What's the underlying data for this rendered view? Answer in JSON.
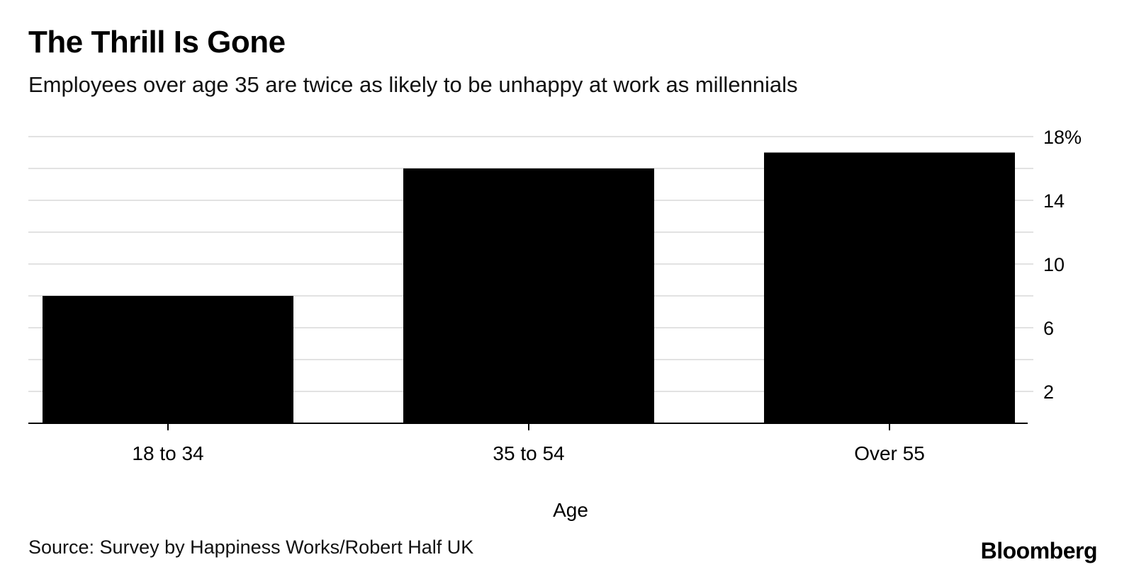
{
  "title": "The Thrill Is Gone",
  "subtitle": "Employees over age 35 are twice as likely to be unhappy at work as millennials",
  "source": "Source: Survey by Happiness Works/Robert Half UK",
  "logo": "Bloomberg",
  "colors": {
    "bar": "#000000",
    "grid": "#e2e2e2",
    "axis": "#000000",
    "background": "#ffffff"
  },
  "chart_data": {
    "type": "bar",
    "title": "The Thrill Is Gone",
    "subtitle": "Employees over age 35 are twice as likely to be unhappy at work as millennials",
    "xlabel": "Age",
    "ylabel": "",
    "categories": [
      "18 to 34",
      "35 to 54",
      "Over 55"
    ],
    "values": [
      8,
      16,
      17
    ],
    "ylim": [
      0,
      18
    ],
    "y_ticks": [
      2,
      6,
      10,
      14,
      18
    ],
    "y_tick_labels": [
      "2",
      "6",
      "10",
      "14",
      "18%"
    ],
    "y_gridlines": [
      2,
      4,
      6,
      8,
      10,
      12,
      14,
      16,
      18
    ],
    "y_axis_side": "right",
    "grid": true,
    "legend": "none"
  }
}
